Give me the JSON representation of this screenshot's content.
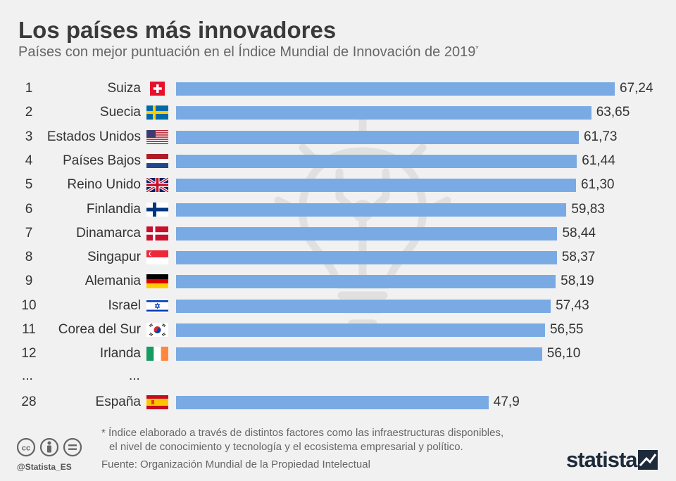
{
  "header": {
    "title": "Los países más innovadores",
    "subtitle": "Países con mejor puntuación en el Índice Mundial de Innovación de 2019",
    "subtitle_mark": "*"
  },
  "chart_data": {
    "type": "bar",
    "orientation": "horizontal",
    "ranks": [
      "1",
      "2",
      "3",
      "4",
      "5",
      "6",
      "7",
      "8",
      "9",
      "10",
      "11",
      "12",
      "28"
    ],
    "categories": [
      "Suiza",
      "Suecia",
      "Estados Unidos",
      "Países Bajos",
      "Reino Unido",
      "Finlandia",
      "Dinamarca",
      "Singapur",
      "Alemania",
      "Israel",
      "Corea del Sur",
      "Irlanda",
      "España"
    ],
    "values": [
      67.24,
      63.65,
      61.73,
      61.44,
      61.3,
      59.83,
      58.44,
      58.37,
      58.19,
      57.43,
      56.55,
      56.1,
      47.9
    ],
    "value_labels": [
      "67,24",
      "63,65",
      "61,73",
      "61,44",
      "61,30",
      "59,83",
      "58,44",
      "58,37",
      "58,19",
      "57,43",
      "56,55",
      "56,10",
      "47,9"
    ],
    "flags": [
      "switzerland-flag",
      "sweden-flag",
      "usa-flag",
      "netherlands-flag",
      "uk-flag",
      "finland-flag",
      "denmark-flag",
      "singapore-flag",
      "germany-flag",
      "israel-flag",
      "south-korea-flag",
      "ireland-flag",
      "spain-flag"
    ],
    "ellipsis_rank": "...",
    "ellipsis_country": "...",
    "bar_color": "#7aaae3",
    "xlim": [
      0,
      67.24
    ],
    "grid": false,
    "legend": "none"
  },
  "footer": {
    "footnote_line1": "* Índice elaborado a través de distintos factores como las infraestructuras disponibles,",
    "footnote_line2": "el nivel de conocimiento y tecnología y el ecosistema empresarial y político.",
    "source": "Fuente: Organización Mundial de la Propiedad Intelectual",
    "handle": "@Statista_ES",
    "logo": "statista",
    "license_icons": [
      "cc-icon",
      "by-icon",
      "nd-icon"
    ]
  }
}
